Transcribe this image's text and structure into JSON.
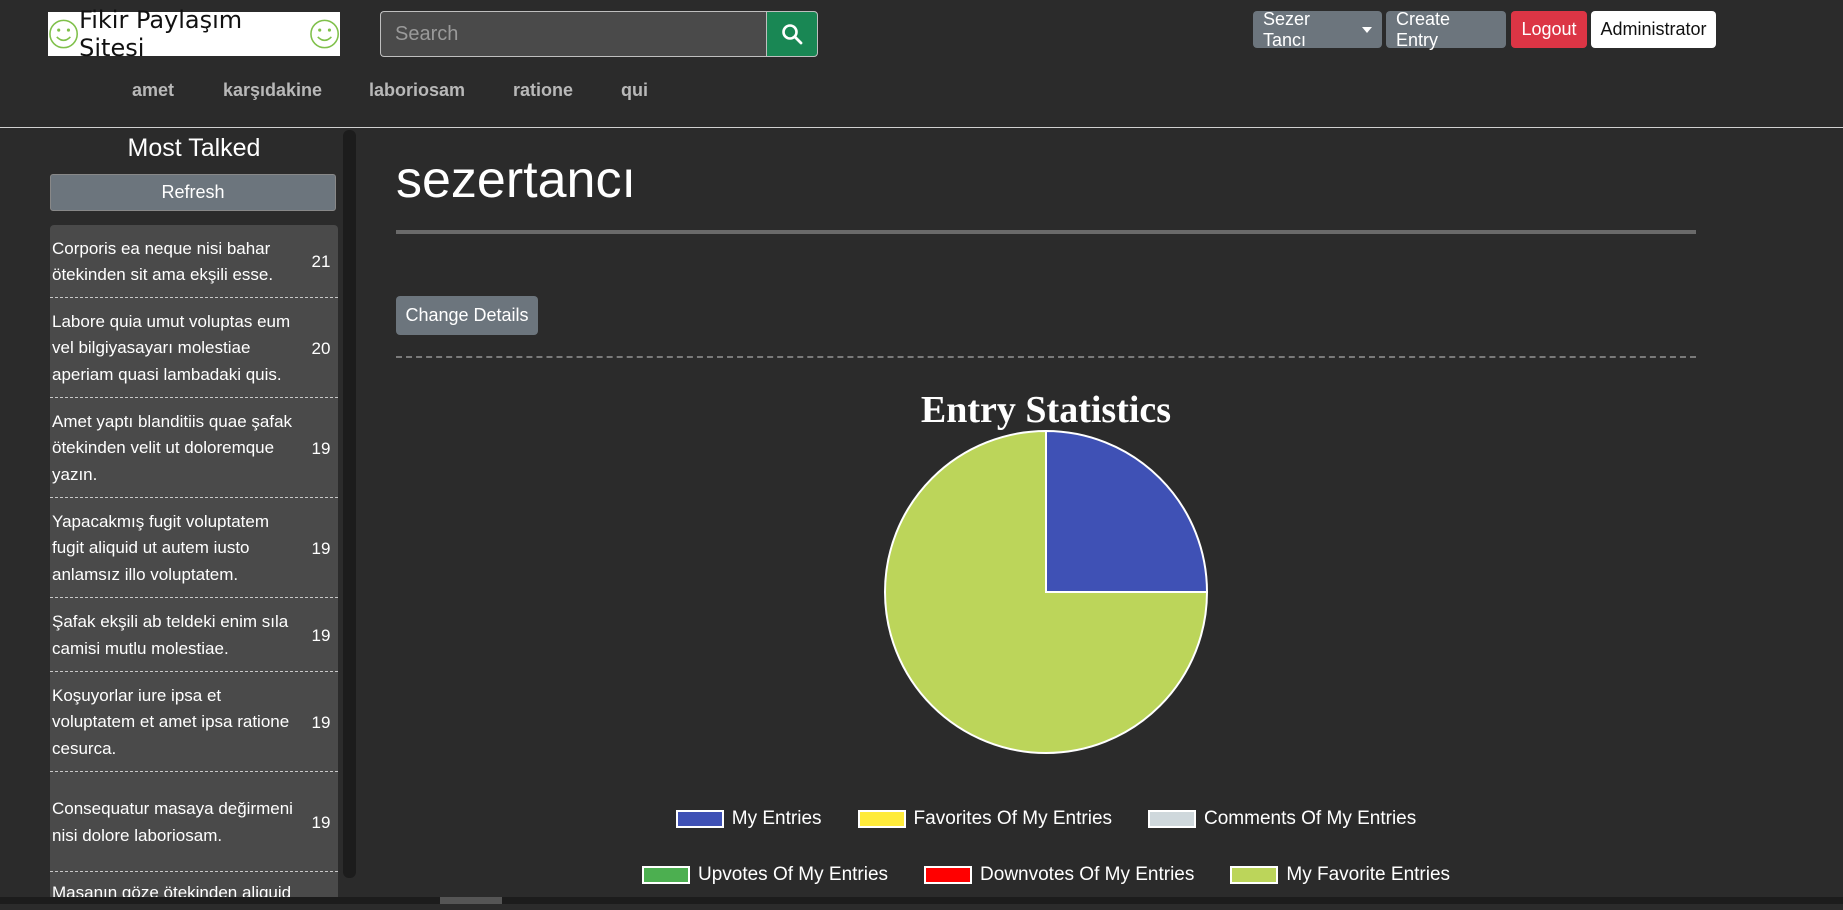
{
  "header": {
    "logo_text": "Fikir Paylaşım Sitesi",
    "search": {
      "placeholder": "Search",
      "value": ""
    },
    "user_menu_label": "Sezer Tancı",
    "create_entry_label": "Create Entry",
    "logout_label": "Logout",
    "admin_label": "Administrator"
  },
  "nav": {
    "items": [
      "amet",
      "karşıdakine",
      "laboriosam",
      "ratione",
      "qui"
    ]
  },
  "sidebar": {
    "title": "Most Talked",
    "refresh_label": "Refresh",
    "items": [
      {
        "text": "Corporis ea neque nisi bahar ötekinden sit ama ekşili esse.",
        "count": "21"
      },
      {
        "text": "Labore quia umut voluptas eum vel bilgiyasayarı molestiae aperiam quasi lambadaki quis.",
        "count": "20"
      },
      {
        "text": "Amet yaptı blanditiis quae şafak ötekinden velit ut doloremque yazın.",
        "count": "19"
      },
      {
        "text": "Yapacakmış fugit voluptatem fugit aliquid ut autem iusto anlamsız illo voluptatem.",
        "count": "19"
      },
      {
        "text": "Şafak ekşili ab teldeki enim sıla camisi mutlu molestiae.",
        "count": "19"
      },
      {
        "text": "Koşuyorlar iure ipsa et voluptatem et amet ipsa ratione cesurca.",
        "count": "19"
      },
      {
        "text": "Consequatur masaya değirmeni nisi dolore laboriosam.",
        "count": "19"
      },
      {
        "text": "Masanın göze ötekinden aliquid",
        "count": ""
      }
    ]
  },
  "main": {
    "username": "sezertancı",
    "change_details_label": "Change Details"
  },
  "chart_data": {
    "type": "pie",
    "title": "Entry Statistics",
    "labels": [
      "My Entries",
      "Favorites Of My Entries",
      "Comments Of My Entries",
      "Upvotes Of My Entries",
      "Downvotes Of My Entries",
      "My Favorite Entries"
    ],
    "values": [
      1,
      0,
      0,
      0,
      0,
      3
    ],
    "colors": [
      "#3f51b5",
      "#ffeb3b",
      "#cfd8dc",
      "#4caf50",
      "#ff0000",
      "#bcd55a"
    ],
    "legend_rows": [
      [
        0,
        1,
        2
      ],
      [
        3,
        4,
        5
      ]
    ],
    "legend_position": "bottom"
  }
}
